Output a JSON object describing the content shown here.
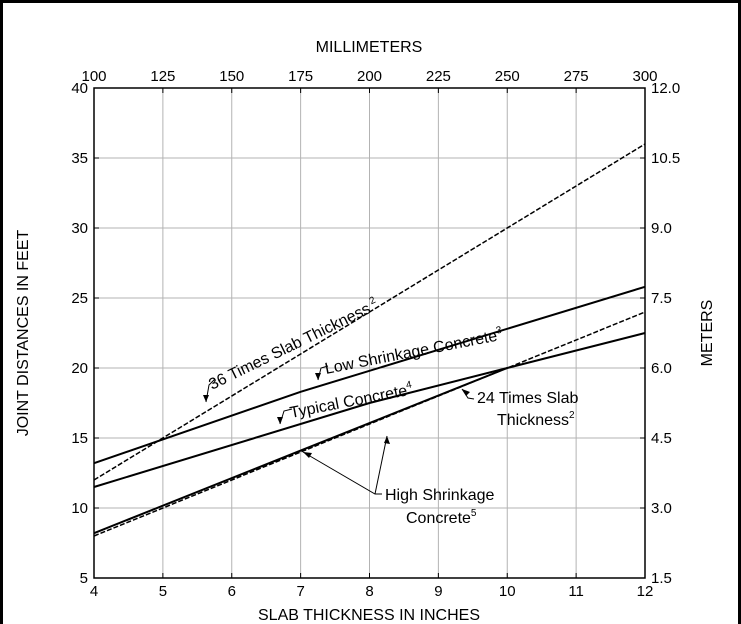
{
  "chart_data": {
    "type": "line",
    "xlabel": "SLAB THICKNESS IN INCHES",
    "ylabel": "JOINT DISTANCES IN FEET",
    "x2label": "MILLIMETERS",
    "y2label": "METERS",
    "xlim": [
      4,
      12
    ],
    "ylim": [
      5,
      40
    ],
    "x_ticks": [
      "4",
      "5",
      "6",
      "7",
      "8",
      "9",
      "10",
      "11",
      "12"
    ],
    "y_ticks": [
      "5",
      "10",
      "15",
      "20",
      "25",
      "30",
      "35",
      "40"
    ],
    "x2_ticks": [
      "100",
      "125",
      "150",
      "175",
      "200",
      "225",
      "250",
      "275",
      "300"
    ],
    "y2_ticks": [
      "1.5",
      "3.0",
      "4.5",
      "6.0",
      "7.5",
      "9.0",
      "10.5",
      "12.0"
    ],
    "grid": true,
    "series": [
      {
        "name": "36 Times Slab Thickness",
        "style": "dashed",
        "x": [
          4,
          12
        ],
        "y": [
          12,
          36
        ]
      },
      {
        "name": "24 Times Slab Thickness",
        "style": "dashed",
        "x": [
          4,
          12
        ],
        "y": [
          8,
          24
        ]
      },
      {
        "name": "Low Shrinkage Concrete",
        "style": "solid",
        "x": [
          4,
          7,
          12
        ],
        "y": [
          13.2,
          18.3,
          25.8
        ]
      },
      {
        "name": "Typical Concrete",
        "style": "solid",
        "x": [
          4,
          8,
          12
        ],
        "y": [
          11.5,
          17.5,
          22.5
        ]
      },
      {
        "name": "High Shrinkage Concrete",
        "style": "solid",
        "x": [
          4,
          7,
          10
        ],
        "y": [
          8.2,
          14.1,
          20
        ]
      }
    ],
    "annotations": [
      {
        "text": "36 Times Slab Thickness",
        "sup": "2"
      },
      {
        "text": "Low Shrinkage Concrete",
        "sup": "3"
      },
      {
        "text": "Typical Concrete",
        "sup": "4"
      },
      {
        "text": "24  Times Slab",
        "text2": "Thickness",
        "sup": "2"
      },
      {
        "text": "High Shrinkage",
        "text2": "Concrete",
        "sup": "5"
      }
    ]
  }
}
